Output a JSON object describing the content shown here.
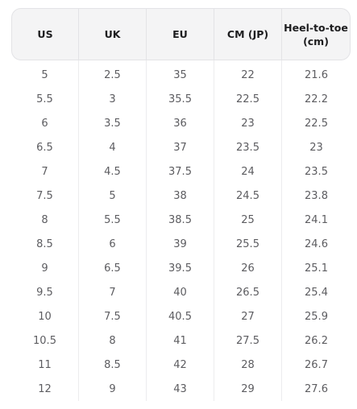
{
  "table": {
    "headers": [
      "US",
      "UK",
      "EU",
      "CM (JP)",
      "Heel-to-toe (cm)"
    ],
    "rows": [
      [
        "5",
        "2.5",
        "35",
        "22",
        "21.6"
      ],
      [
        "5.5",
        "3",
        "35.5",
        "22.5",
        "22.2"
      ],
      [
        "6",
        "3.5",
        "36",
        "23",
        "22.5"
      ],
      [
        "6.5",
        "4",
        "37",
        "23.5",
        "23"
      ],
      [
        "7",
        "4.5",
        "37.5",
        "24",
        "23.5"
      ],
      [
        "7.5",
        "5",
        "38",
        "24.5",
        "23.8"
      ],
      [
        "8",
        "5.5",
        "38.5",
        "25",
        "24.1"
      ],
      [
        "8.5",
        "6",
        "39",
        "25.5",
        "24.6"
      ],
      [
        "9",
        "6.5",
        "39.5",
        "26",
        "25.1"
      ],
      [
        "9.5",
        "7",
        "40",
        "26.5",
        "25.4"
      ],
      [
        "10",
        "7.5",
        "40.5",
        "27",
        "25.9"
      ],
      [
        "10.5",
        "8",
        "41",
        "27.5",
        "26.2"
      ],
      [
        "11",
        "8.5",
        "42",
        "28",
        "26.7"
      ],
      [
        "12",
        "9",
        "43",
        "29",
        "27.6"
      ]
    ]
  },
  "colors": {
    "header_background": "#f4f4f5",
    "header_text": "#1d1d1f",
    "cell_text": "#5c5c60",
    "divider": "#ececee"
  }
}
